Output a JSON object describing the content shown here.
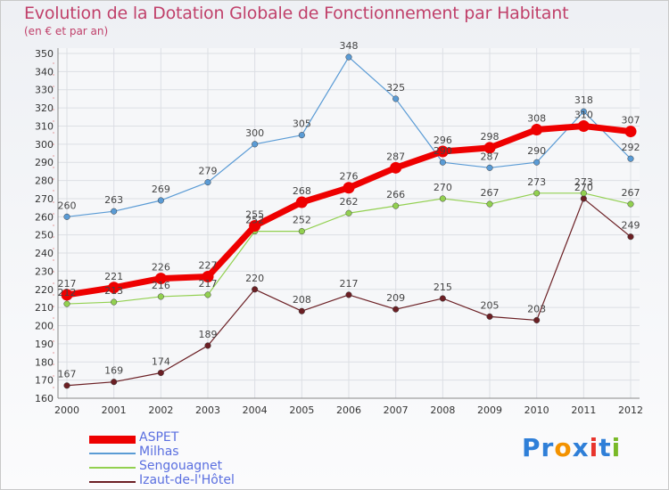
{
  "chart_data": {
    "type": "line",
    "title": "Evolution de la Dotation Globale de Fonctionnement par Habitant",
    "subtitle": "(en € et par an)",
    "xlabel": "",
    "ylabel": "",
    "ylim": [
      160,
      350
    ],
    "y_ticks": [
      160,
      170,
      180,
      190,
      200,
      210,
      220,
      230,
      240,
      250,
      260,
      270,
      280,
      290,
      300,
      310,
      320,
      330,
      340,
      350
    ],
    "categories": [
      "2000",
      "2001",
      "2002",
      "2003",
      "2004",
      "2005",
      "2006",
      "2007",
      "2008",
      "2009",
      "2010",
      "2011",
      "2012"
    ],
    "grid": true,
    "legend_position": "bottom-left",
    "series": [
      {
        "name": "Izaut-de-l'Hôtel",
        "color": "#6b1f24",
        "values": [
          167,
          169,
          174,
          189,
          220,
          208,
          217,
          209,
          215,
          205,
          203,
          270,
          249
        ]
      },
      {
        "name": "Sengouagnet",
        "color": "#92d050",
        "values": [
          212,
          213,
          216,
          217,
          252,
          252,
          262,
          266,
          270,
          267,
          273,
          273,
          267
        ]
      },
      {
        "name": "Milhas",
        "color": "#5a9bd5",
        "values": [
          260,
          263,
          269,
          279,
          300,
          305,
          348,
          325,
          290,
          287,
          290,
          318,
          292
        ]
      },
      {
        "name": "ASPET",
        "color": "#ee0000",
        "values": [
          217,
          221,
          226,
          227,
          255,
          268,
          276,
          287,
          296,
          298,
          308,
          310,
          307
        ]
      }
    ],
    "data_labels": {
      "ASPET": [
        "217",
        "221",
        "226",
        "227",
        "255",
        "268",
        "276",
        "287",
        "296",
        "298",
        "308",
        "310",
        "307"
      ],
      "Milhas": [
        "260",
        "263",
        "269",
        "279",
        "300",
        "305",
        "348",
        "325",
        "290",
        "287",
        "290",
        "318",
        "292"
      ],
      "Sengouagnet": [
        "212",
        "213",
        "216",
        "217",
        "252",
        "252",
        "262",
        "266",
        "270",
        "267",
        "273",
        "273",
        "267"
      ],
      "Izaut-de-l'Hôtel": [
        "167",
        "169",
        "174",
        "189",
        "220",
        "208",
        "217",
        "209",
        "215",
        "205",
        "203",
        "270",
        "249"
      ]
    }
  },
  "legend": {
    "items": [
      {
        "label": "ASPET",
        "color": "#ee0000"
      },
      {
        "label": "Milhas",
        "color": "#5a9bd5"
      },
      {
        "label": "Sengouagnet",
        "color": "#92d050"
      },
      {
        "label": "Izaut-de-l'Hôtel",
        "color": "#6b1f24"
      }
    ]
  },
  "brand": {
    "letters": [
      "P",
      "r",
      "o",
      "x",
      "i",
      "t",
      "i"
    ],
    "colors": [
      "#2f7fd8",
      "#2f7fd8",
      "#f39200",
      "#2f7fd8",
      "#e8342c",
      "#2f7fd8",
      "#79b928"
    ]
  }
}
